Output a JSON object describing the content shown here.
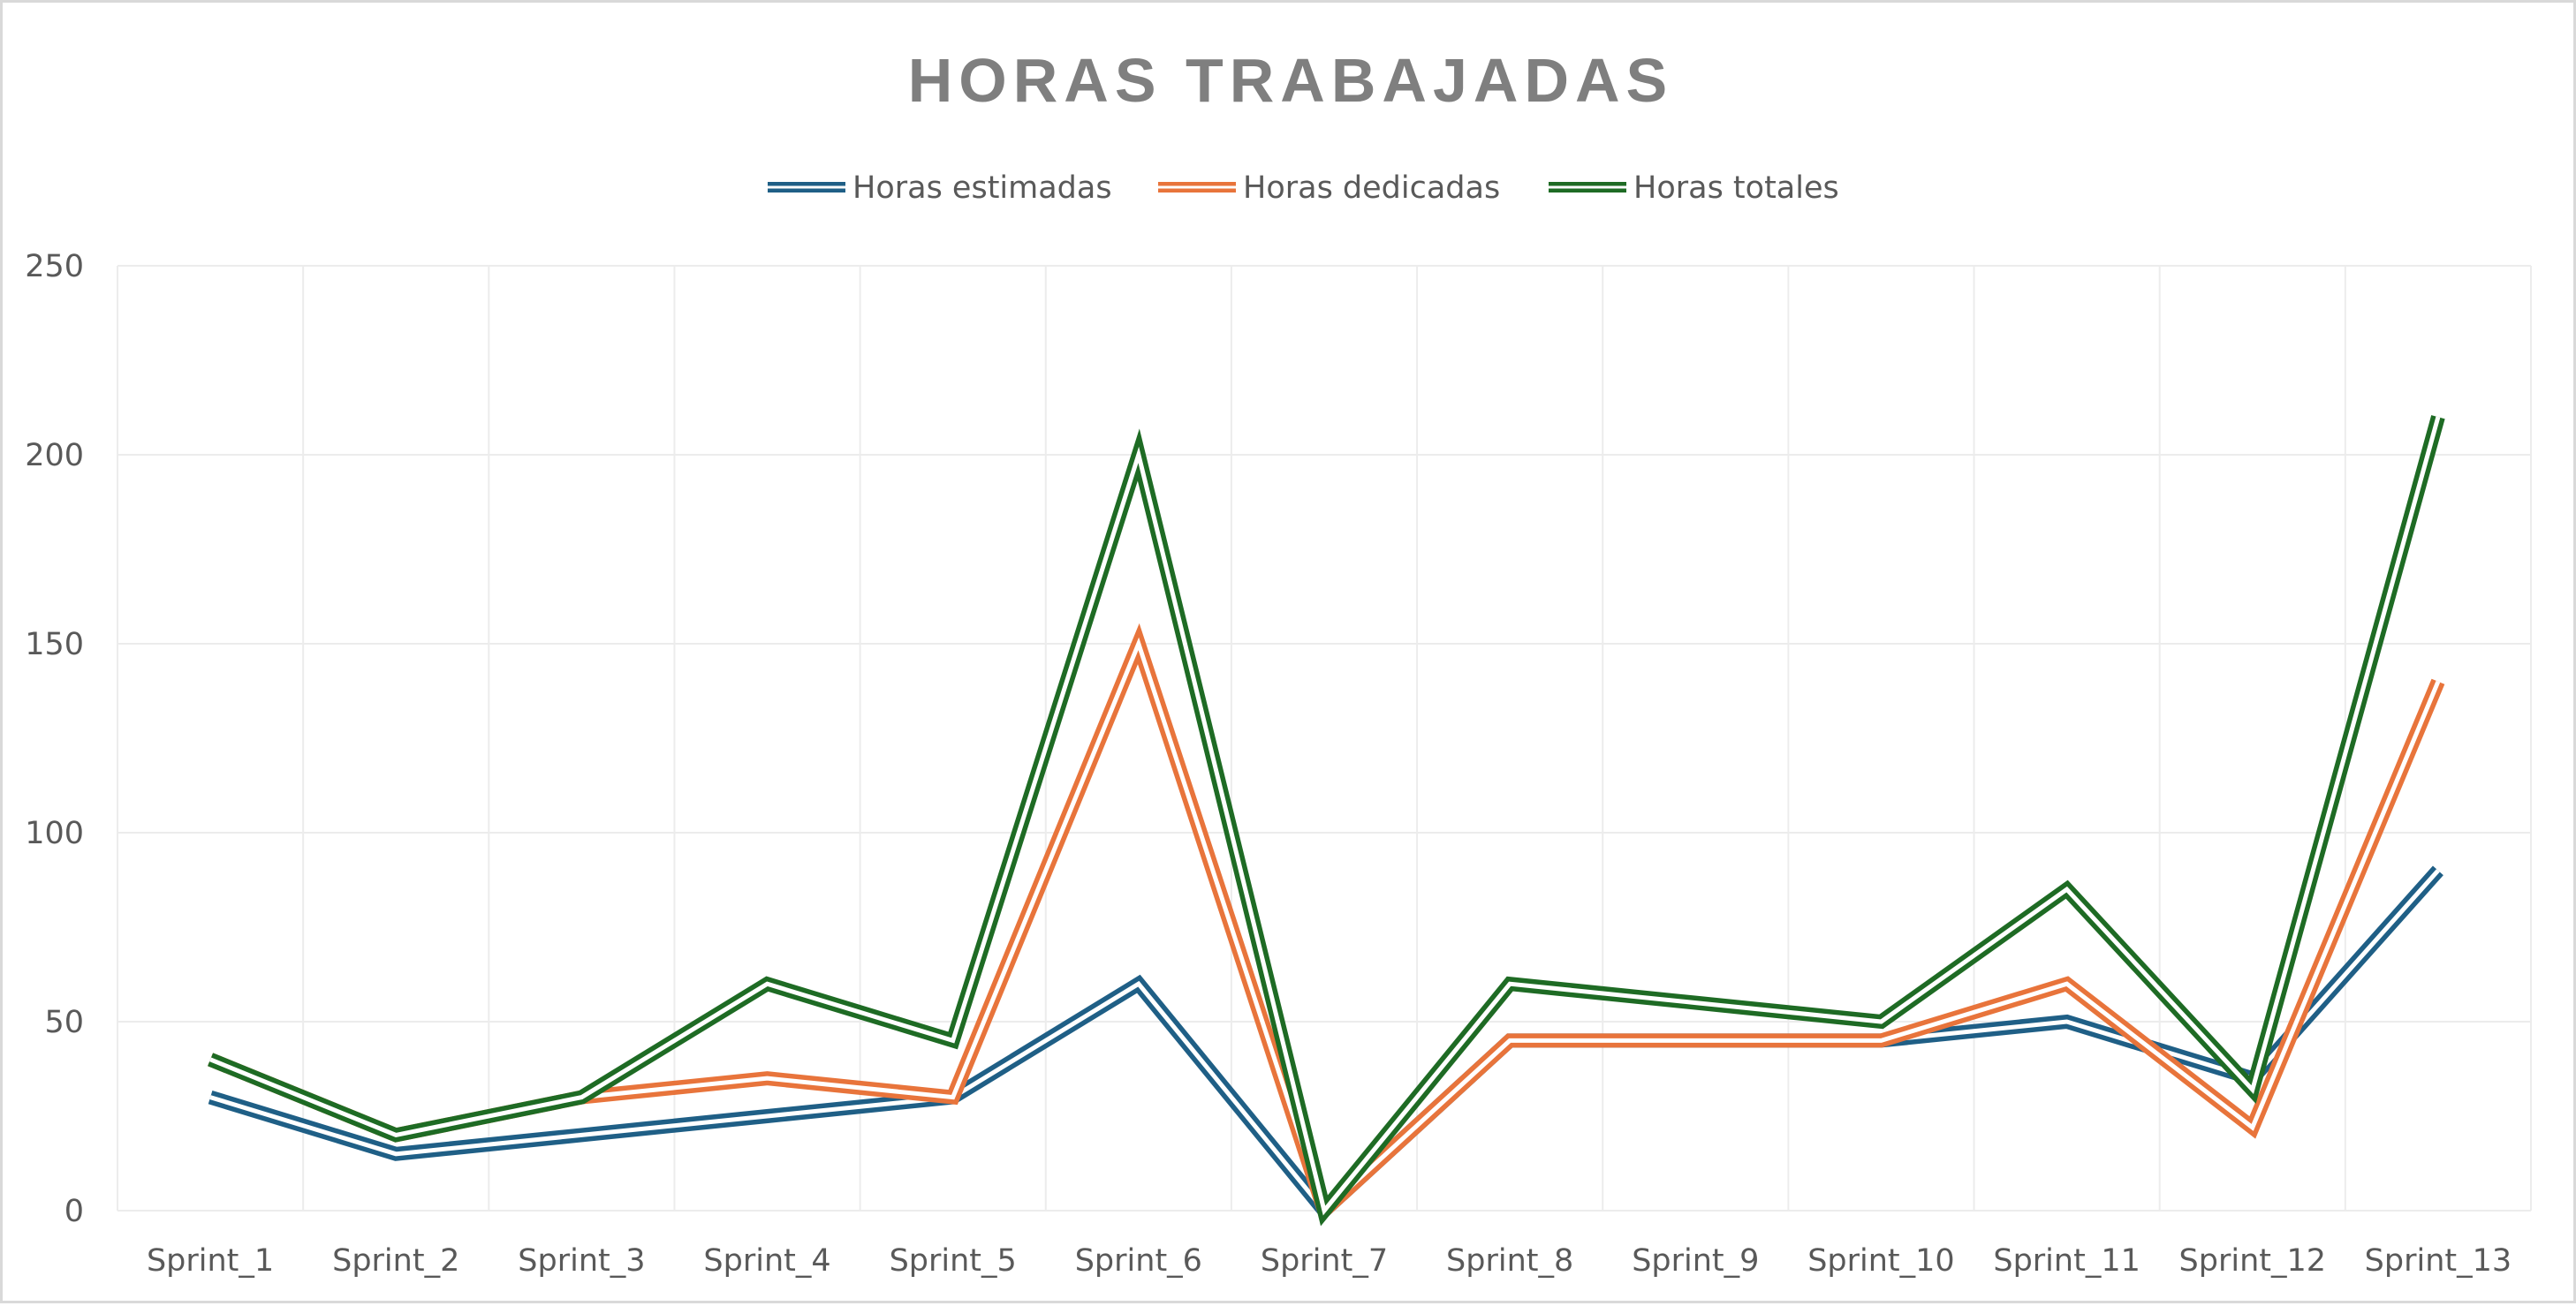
{
  "chart_data": {
    "type": "line",
    "title": "HORAS TRABAJADAS",
    "xlabel": "",
    "ylabel": "",
    "categories": [
      "Sprint_1",
      "Sprint_2",
      "Sprint_3",
      "Sprint_4",
      "Sprint_5",
      "Sprint_6",
      "Sprint_7",
      "Sprint_8",
      "Sprint_9",
      "Sprint_10",
      "Sprint_11",
      "Sprint_12",
      "Sprint_13"
    ],
    "ylim": [
      0,
      250
    ],
    "yticks": [
      0,
      50,
      100,
      150,
      200,
      250
    ],
    "grid": true,
    "legend_position": "top",
    "series": [
      {
        "name": "Horas estimadas",
        "color": "#1f5f86",
        "values": [
          30,
          15,
          20,
          25,
          30,
          60,
          0,
          45,
          45,
          45,
          50,
          35,
          90
        ]
      },
      {
        "name": "Horas dedicadas",
        "color": "#e8743b",
        "values": [
          40,
          20,
          30,
          35,
          30,
          150,
          0,
          45,
          45,
          45,
          60,
          22,
          140
        ]
      },
      {
        "name": "Horas totales",
        "color": "#1e6b24",
        "values": [
          40,
          20,
          30,
          60,
          45,
          200,
          0,
          60,
          55,
          50,
          85,
          32,
          210
        ]
      }
    ]
  }
}
